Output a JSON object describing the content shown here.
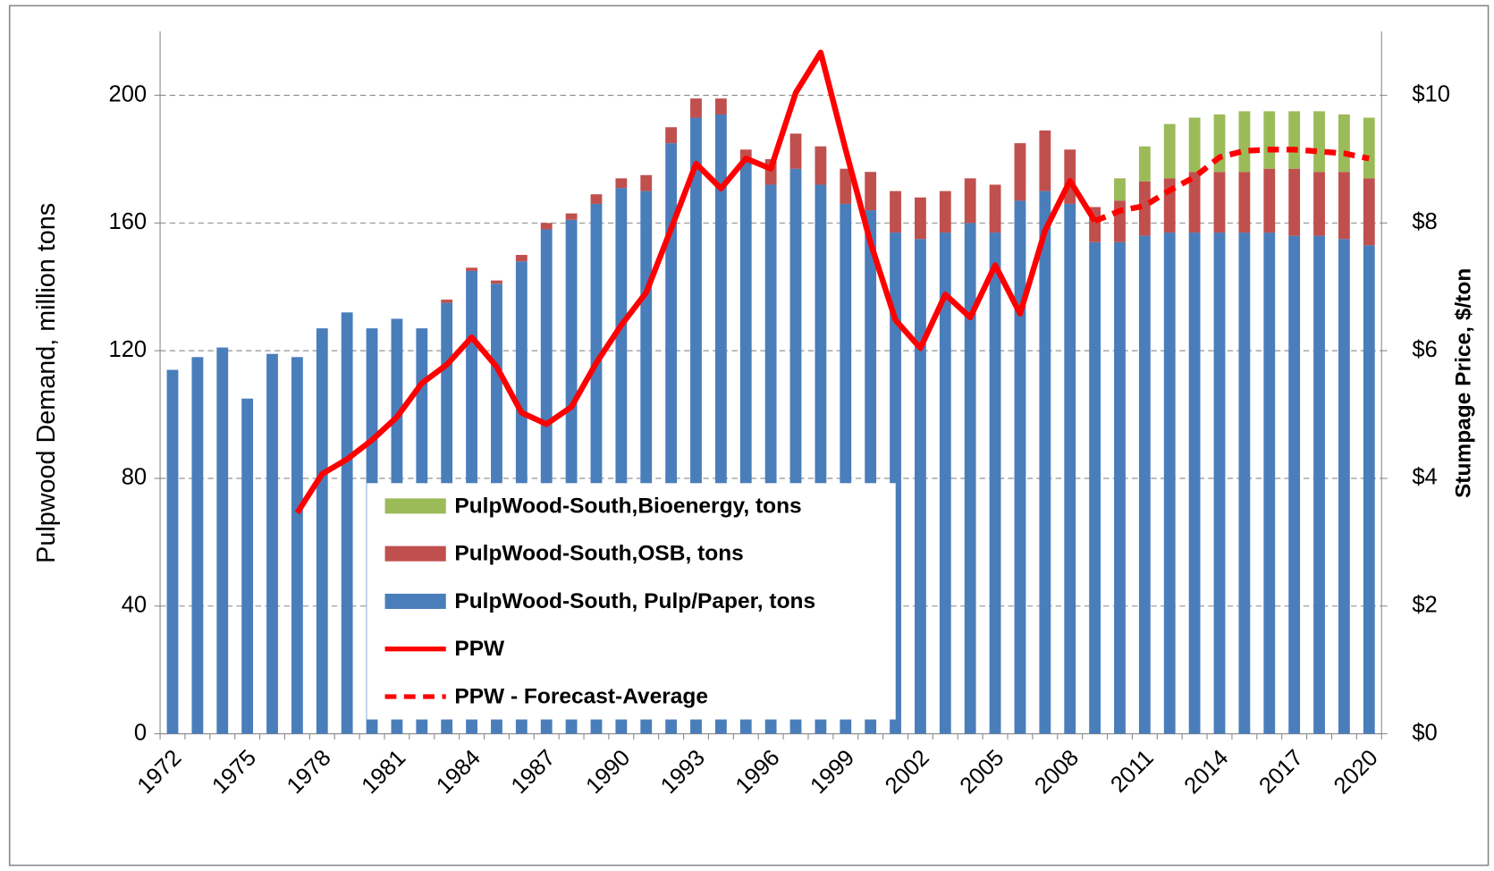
{
  "chart_data": {
    "type": "bar",
    "stacked": true,
    "categories": [
      "1972",
      null,
      null,
      "1975",
      null,
      null,
      "1978",
      null,
      null,
      "1981",
      null,
      null,
      "1984",
      null,
      null,
      "1987",
      null,
      null,
      "1990",
      null,
      null,
      "1993",
      null,
      null,
      "1996",
      null,
      null,
      "1999",
      null,
      null,
      "2002",
      null,
      null,
      "2005",
      null,
      null,
      "2008",
      null,
      null,
      "2011",
      null,
      null,
      "2014",
      null,
      null,
      "2017",
      null,
      null,
      "2020"
    ],
    "y_label": "Pulpwood Demand, million tons",
    "y2_label": "Stumpage Price, $/ton",
    "ylim": [
      0,
      220
    ],
    "yticks": [
      0,
      40,
      80,
      120,
      160,
      200
    ],
    "y2lim": [
      0,
      11
    ],
    "y2ticks": [
      {
        "value": 0,
        "label": "$0"
      },
      {
        "value": 2,
        "label": "$2"
      },
      {
        "value": 4,
        "label": "$4"
      },
      {
        "value": 6,
        "label": "$6"
      },
      {
        "value": 8,
        "label": "$8"
      },
      {
        "value": 10,
        "label": "$10"
      }
    ],
    "grid": true,
    "legend": "inside-bottom-left",
    "series": [
      {
        "name": "PulpWood-South, Pulp/Paper, tons",
        "type": "bar",
        "color": "#4a7ebb",
        "values": [
          114,
          118,
          121,
          105,
          119,
          118,
          127,
          132,
          127,
          130,
          127,
          135,
          145,
          141,
          148,
          158,
          161,
          166,
          171,
          170,
          185,
          193,
          194,
          180,
          172,
          177,
          172,
          166,
          164,
          157,
          155,
          157,
          160,
          157,
          167,
          170,
          166,
          154,
          154,
          156,
          157,
          157,
          157,
          157,
          157,
          156,
          156,
          155,
          153
        ]
      },
      {
        "name": "PulpWood-South,OSB,  tons",
        "type": "bar",
        "color": "#c0504d",
        "values": [
          null,
          null,
          null,
          null,
          null,
          null,
          null,
          null,
          null,
          null,
          null,
          1,
          1,
          1,
          2,
          2,
          2,
          3,
          3,
          5,
          5,
          6,
          5,
          3,
          8,
          11,
          12,
          11,
          12,
          13,
          13,
          13,
          14,
          15,
          18,
          19,
          17,
          11,
          13,
          17,
          17,
          19,
          19,
          19,
          20,
          21,
          20,
          21,
          21
        ]
      },
      {
        "name": "PulpWood-South,Bioenergy,  tons",
        "type": "bar",
        "color": "#9bbb59",
        "values": [
          null,
          null,
          null,
          null,
          null,
          null,
          null,
          null,
          null,
          null,
          null,
          null,
          null,
          null,
          null,
          null,
          null,
          null,
          null,
          null,
          null,
          null,
          null,
          null,
          null,
          null,
          null,
          null,
          null,
          null,
          null,
          null,
          null,
          null,
          null,
          null,
          null,
          null,
          7,
          11,
          17,
          17,
          18,
          19,
          18,
          18,
          19,
          18,
          19
        ]
      },
      {
        "name": "PPW",
        "type": "line",
        "axis": "y2",
        "color": "#ff0000",
        "dash": false,
        "values": [
          null,
          null,
          null,
          null,
          null,
          3.46,
          4.07,
          4.3,
          4.6,
          4.96,
          5.49,
          5.78,
          6.21,
          5.75,
          5.03,
          4.85,
          5.12,
          5.81,
          6.4,
          6.91,
          7.91,
          8.93,
          8.54,
          9.01,
          8.85,
          10.04,
          10.67,
          9.15,
          7.69,
          6.48,
          6.04,
          6.88,
          6.52,
          7.34,
          6.58,
          7.88,
          8.66,
          8.03,
          null,
          null,
          null,
          null,
          null,
          null,
          null,
          null,
          null,
          null,
          null
        ]
      },
      {
        "name": "PPW - Forecast-Average",
        "type": "line",
        "axis": "y2",
        "color": "#ff0000",
        "dash": true,
        "values": [
          null,
          null,
          null,
          null,
          null,
          null,
          null,
          null,
          null,
          null,
          null,
          null,
          null,
          null,
          null,
          null,
          null,
          null,
          null,
          null,
          null,
          null,
          null,
          null,
          null,
          null,
          null,
          null,
          null,
          null,
          null,
          null,
          null,
          null,
          null,
          null,
          null,
          8.03,
          8.19,
          8.27,
          8.51,
          8.72,
          9.03,
          9.13,
          9.15,
          9.15,
          9.12,
          9.09,
          9.01
        ]
      }
    ]
  }
}
